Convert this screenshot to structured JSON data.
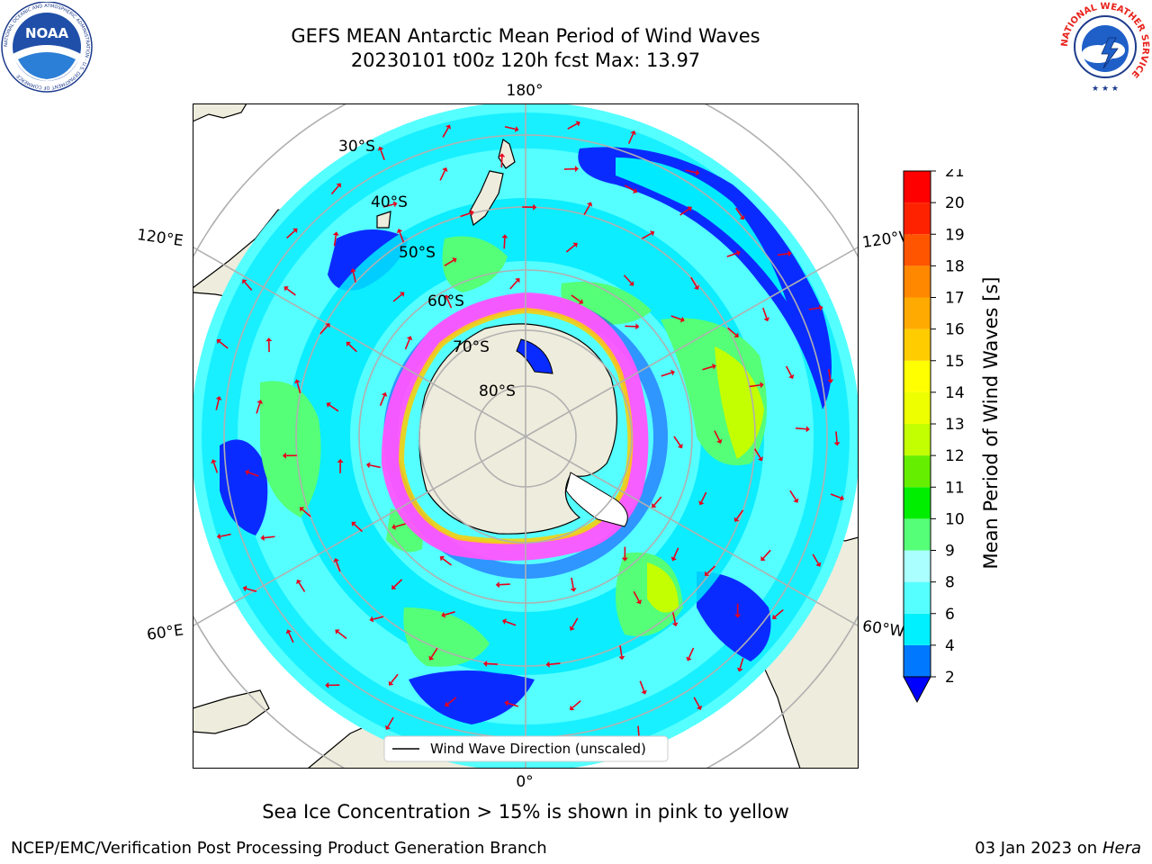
{
  "title": {
    "line1": "GEFS MEAN Antarctic Mean Period of Wind Waves",
    "line2": "20230101 t00z 120h fcst   Max: 13.97"
  },
  "logos": {
    "left": "noaa-logo",
    "left_text": "NOAA",
    "left_ring": "NATIONAL OCEANIC AND ATMOSPHERIC ADMINISTRATION · U.S. DEPARTMENT OF COMMERCE",
    "right": "nws-logo",
    "right_ring": "NATIONAL WEATHER SERVICE"
  },
  "map": {
    "projection": "south-polar-stereographic",
    "lat_labels": [
      "30°S",
      "40°S",
      "50°S",
      "60°S",
      "70°S",
      "80°S"
    ],
    "lon_labels": {
      "top": "180°",
      "bottom": "0°",
      "left_upper": "120°E",
      "left_lower": "60°E",
      "right_upper": "120°W",
      "right_lower": "60°W"
    },
    "legend": "Wind Wave Direction (unscaled)"
  },
  "colorbar": {
    "label": "Mean Period of Wind Waves [s]",
    "ticks": [
      "2",
      "4",
      "6",
      "8",
      "9",
      "10",
      "11",
      "12",
      "13",
      "14",
      "15",
      "16",
      "17",
      "18",
      "19",
      "20",
      "21"
    ],
    "colors": [
      "#0000ff",
      "#0078ff",
      "#00f0ff",
      "#55ffff",
      "#aaffff",
      "#55ff77",
      "#00ee00",
      "#66ee00",
      "#c3ff00",
      "#eeff00",
      "#ffff00",
      "#ffcc00",
      "#ffaa00",
      "#ff8800",
      "#ff5500",
      "#ff2200",
      "#ff0000"
    ],
    "extend": "min"
  },
  "footnote": "Sea Ice Concentration > 15% is shown in pink to yellow",
  "credit": {
    "left": "NCEP/EMC/Verification Post Processing Product Generation Branch",
    "right_date": "03 Jan 2023 on ",
    "right_system": "Hera"
  }
}
